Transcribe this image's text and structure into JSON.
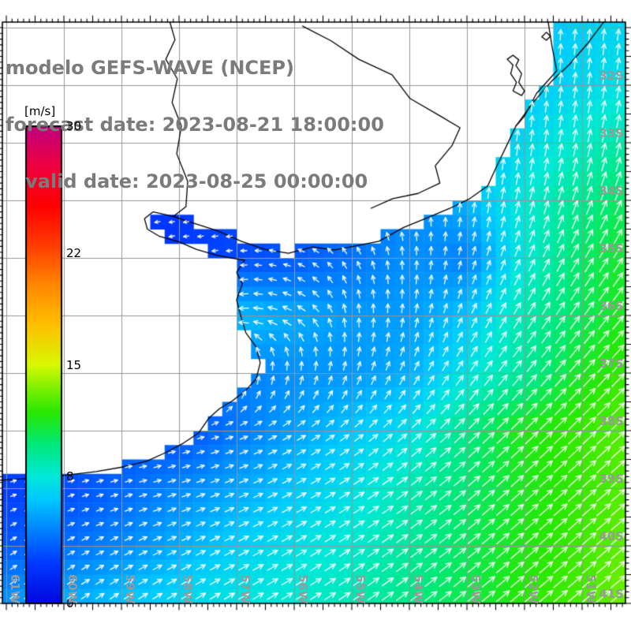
{
  "title": {
    "line1": "modelo GEFS-WAVE (NCEP)",
    "line2": "forecast date: 2023-08-21 18:00:00",
    "line3": "   valid date: 2023-08-25 00:00:00"
  },
  "colorbar": {
    "unit": "[m/s]",
    "min": 0,
    "max": 30,
    "tick_values": [
      30,
      22,
      15,
      8,
      0
    ],
    "tick_labels": [
      "30",
      "22",
      "15",
      "8",
      "0"
    ]
  },
  "axes": {
    "lon_labels": [
      "61W",
      "60W",
      "59W",
      "58W",
      "57W",
      "56W",
      "55W",
      "54W",
      "53W",
      "52W",
      "51W"
    ],
    "lon_values": [
      61,
      60,
      59,
      58,
      57,
      56,
      55,
      54,
      53,
      52,
      51
    ],
    "lat_labels": [
      "32S",
      "33S",
      "34S",
      "35S",
      "36S",
      "37S",
      "38S",
      "39S",
      "40S",
      "41S"
    ],
    "lat_values": [
      32,
      33,
      34,
      35,
      36,
      37,
      38,
      39,
      40,
      41
    ]
  },
  "style": {
    "background": "#ffffff",
    "frame_color": "#000000",
    "grid_color": "#969696",
    "axis_label_color": "#999999",
    "title_color": "#7b7b7b",
    "arrow_color": "#ffffff",
    "coast_color": "#000000"
  },
  "chart_data": {
    "type": "heatmap",
    "subtype": "geo-heatmap-with-quiver",
    "unit": "m/s",
    "extent": {
      "lon_west": 61.07,
      "lon_east": 50.25,
      "lat_north": 30.9,
      "lat_south": 41.0
    },
    "grid_step_deg": 0.25,
    "lon_nodes_W": [
      61,
      60,
      59,
      58,
      57,
      56,
      55,
      54,
      53,
      52,
      51,
      50
    ],
    "lat_nodes_S": [
      31,
      32,
      33,
      34,
      35,
      36,
      37,
      38,
      39,
      40,
      41
    ],
    "speed_ms": [
      [
        4.0,
        4.0,
        4.0,
        4.0,
        4.0,
        4.0,
        4.6,
        5.4,
        5.9,
        6.3,
        6.8,
        7.2
      ],
      [
        4.0,
        4.0,
        4.0,
        4.0,
        4.0,
        4.0,
        4.6,
        5.3,
        5.9,
        6.5,
        7.2,
        7.8
      ],
      [
        3.0,
        3.0,
        3.0,
        3.0,
        3.0,
        3.4,
        4.0,
        4.8,
        5.8,
        7.2,
        8.4,
        9.4
      ],
      [
        2.6,
        2.6,
        2.5,
        2.4,
        2.8,
        3.2,
        3.8,
        4.8,
        6.0,
        8.2,
        9.6,
        10.8
      ],
      [
        2.6,
        2.6,
        2.4,
        2.6,
        3.0,
        3.4,
        4.2,
        5.0,
        4.5,
        8.0,
        10.4,
        11.6
      ],
      [
        3.0,
        3.0,
        3.2,
        5.5,
        6.3,
        5.8,
        5.3,
        5.3,
        6.5,
        9.0,
        10.5,
        12.0
      ],
      [
        3.5,
        3.5,
        3.5,
        3.8,
        4.5,
        5.0,
        5.2,
        5.8,
        7.7,
        9.3,
        11.5,
        12.6
      ],
      [
        4.0,
        4.0,
        3.4,
        3.0,
        4.3,
        5.5,
        6.5,
        7.5,
        9.8,
        11.7,
        12.3,
        13.0
      ],
      [
        2.6,
        3.0,
        3.8,
        4.8,
        5.6,
        6.5,
        7.5,
        8.8,
        10.2,
        11.5,
        12.3,
        13.0
      ],
      [
        3.4,
        4.0,
        4.8,
        5.8,
        6.8,
        7.6,
        8.2,
        9.3,
        10.5,
        11.7,
        12.4,
        13.2
      ],
      [
        5.2,
        5.8,
        6.5,
        7.2,
        7.8,
        8.2,
        8.8,
        9.8,
        10.8,
        12.0,
        12.6,
        13.5
      ]
    ],
    "direction_toward_deg": [
      [
        0,
        0,
        0,
        0,
        0,
        0,
        0,
        355,
        355,
        0,
        5,
        8
      ],
      [
        0,
        0,
        0,
        0,
        0,
        0,
        350,
        350,
        355,
        5,
        8,
        10
      ],
      [
        0,
        0,
        0,
        0,
        0,
        355,
        350,
        350,
        0,
        8,
        12,
        15
      ],
      [
        270,
        270,
        265,
        262,
        268,
        280,
        320,
        345,
        5,
        15,
        20,
        25
      ],
      [
        260,
        260,
        255,
        258,
        265,
        290,
        330,
        0,
        15,
        25,
        30,
        35
      ],
      [
        265,
        265,
        262,
        260,
        262,
        300,
        355,
        10,
        25,
        32,
        36,
        40
      ],
      [
        355,
        355,
        355,
        0,
        5,
        10,
        18,
        28,
        35,
        40,
        42,
        44
      ],
      [
        85,
        85,
        82,
        78,
        70,
        60,
        52,
        48,
        46,
        46,
        46,
        48
      ],
      [
        70,
        72,
        74,
        72,
        68,
        62,
        58,
        54,
        50,
        48,
        48,
        50
      ],
      [
        60,
        62,
        64,
        65,
        63,
        60,
        57,
        54,
        51,
        49,
        49,
        50
      ],
      [
        52,
        54,
        56,
        58,
        59,
        58,
        56,
        53,
        51,
        50,
        50,
        50
      ]
    ],
    "colormap_stops": [
      [
        0,
        "#0008E0"
      ],
      [
        2.5,
        "#0038FF"
      ],
      [
        5,
        "#0090FF"
      ],
      [
        6.5,
        "#00C8FF"
      ],
      [
        8,
        "#00E8D8"
      ],
      [
        10,
        "#00E87A"
      ],
      [
        12,
        "#28E800"
      ],
      [
        13.5,
        "#7CF000"
      ],
      [
        15,
        "#D8F800"
      ],
      [
        17.5,
        "#FFC000"
      ],
      [
        20,
        "#FF8800"
      ],
      [
        22.5,
        "#FF3C00"
      ],
      [
        25,
        "#FF0000"
      ],
      [
        27.5,
        "#EE0040"
      ],
      [
        30,
        "#C0007E"
      ]
    ],
    "coastline_lonlat": [
      [
        51.59,
        30.9
      ],
      [
        51.52,
        31.34
      ],
      [
        51.44,
        31.75
      ],
      [
        51.79,
        32.14
      ],
      [
        52.01,
        32.55
      ],
      [
        52.15,
        32.71
      ],
      [
        52.31,
        33.05
      ],
      [
        52.48,
        33.4
      ],
      [
        52.64,
        33.75
      ],
      [
        52.95,
        33.97
      ],
      [
        53.3,
        34.14
      ],
      [
        53.68,
        34.3
      ],
      [
        54.1,
        34.47
      ],
      [
        54.53,
        34.71
      ],
      [
        54.92,
        34.79
      ],
      [
        55.3,
        34.86
      ],
      [
        55.68,
        34.81
      ],
      [
        56.1,
        34.92
      ],
      [
        56.51,
        34.85
      ],
      [
        56.92,
        34.71
      ],
      [
        57.33,
        34.53
      ],
      [
        57.74,
        34.4
      ],
      [
        58.1,
        34.28
      ],
      [
        58.45,
        34.2
      ],
      [
        58.6,
        34.32
      ],
      [
        58.55,
        34.5
      ],
      [
        58.35,
        34.62
      ],
      [
        58.0,
        34.72
      ],
      [
        57.7,
        34.85
      ],
      [
        57.36,
        34.95
      ],
      [
        57.1,
        35.0
      ],
      [
        56.86,
        35.04
      ],
      [
        57.0,
        35.25
      ],
      [
        56.9,
        35.45
      ],
      [
        57.0,
        35.73
      ],
      [
        56.93,
        36.0
      ],
      [
        56.84,
        36.3
      ],
      [
        56.66,
        36.55
      ],
      [
        56.59,
        36.82
      ],
      [
        56.66,
        37.1
      ],
      [
        56.84,
        37.3
      ],
      [
        57.07,
        37.48
      ],
      [
        57.3,
        37.62
      ],
      [
        57.48,
        37.78
      ],
      [
        57.66,
        38.04
      ],
      [
        57.93,
        38.22
      ],
      [
        58.23,
        38.38
      ],
      [
        58.56,
        38.53
      ],
      [
        58.97,
        38.63
      ],
      [
        59.44,
        38.71
      ],
      [
        59.93,
        38.77
      ],
      [
        60.45,
        38.82
      ],
      [
        61.11,
        38.86
      ]
    ],
    "barrier_line_lonlat": [
      [
        50.62,
        30.9
      ],
      [
        50.9,
        31.27
      ],
      [
        51.22,
        31.64
      ],
      [
        51.52,
        31.92
      ],
      [
        51.85,
        32.3
      ],
      [
        52.15,
        32.71
      ]
    ],
    "inner_line_lonlat": [
      [
        55.86,
        30.97
      ],
      [
        55.36,
        31.23
      ],
      [
        54.88,
        31.55
      ],
      [
        54.3,
        31.82
      ],
      [
        53.99,
        32.23
      ],
      [
        53.44,
        32.55
      ],
      [
        53.12,
        32.74
      ],
      [
        53.26,
        33.05
      ],
      [
        53.55,
        33.4
      ],
      [
        53.47,
        33.7
      ],
      [
        53.85,
        33.88
      ],
      [
        54.29,
        33.97
      ],
      [
        54.67,
        34.14
      ]
    ],
    "river_lonlat": [
      [
        58.16,
        30.9
      ],
      [
        58.07,
        31.21
      ],
      [
        58.23,
        31.55
      ],
      [
        58.03,
        31.89
      ],
      [
        58.12,
        32.3
      ],
      [
        57.96,
        32.71
      ],
      [
        58.04,
        33.19
      ],
      [
        57.85,
        33.67
      ],
      [
        57.88,
        34.11
      ],
      [
        58.1,
        34.28
      ]
    ],
    "lagoon_a_lonlat": [
      [
        52.3,
        31.55
      ],
      [
        52.2,
        31.65
      ],
      [
        52.24,
        31.8
      ],
      [
        52.14,
        31.95
      ],
      [
        52.2,
        32.1
      ],
      [
        52.05,
        32.18
      ],
      [
        52.0,
        32.1
      ],
      [
        52.1,
        31.95
      ],
      [
        52.05,
        31.8
      ],
      [
        52.15,
        31.66
      ],
      [
        52.1,
        31.56
      ],
      [
        52.2,
        31.48
      ]
    ],
    "lagoon_b_lonlat": [
      [
        51.62,
        31.08
      ],
      [
        51.55,
        31.15
      ],
      [
        51.62,
        31.22
      ],
      [
        51.7,
        31.16
      ]
    ]
  }
}
